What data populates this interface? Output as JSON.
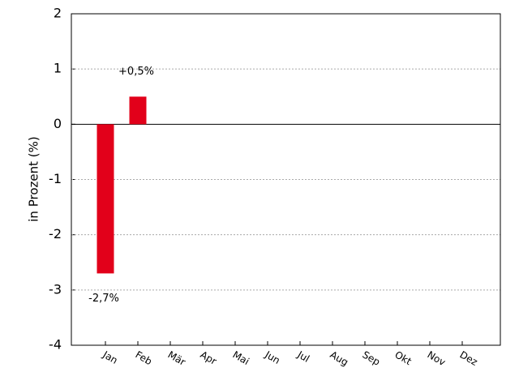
{
  "chart_data": {
    "type": "bar",
    "y_label": "in Prozent (%)",
    "categories": [
      "Jan",
      "Feb",
      "Mär",
      "Apr",
      "Mai",
      "Jun",
      "Jul",
      "Aug",
      "Sep",
      "Okt",
      "Nov",
      "Dez"
    ],
    "values": [
      -2.7,
      0.5,
      null,
      null,
      null,
      null,
      null,
      null,
      null,
      null,
      null,
      null
    ],
    "value_labels": [
      "-2,7%",
      "+0,5%",
      null,
      null,
      null,
      null,
      null,
      null,
      null,
      null,
      null,
      null
    ],
    "color": "#e2001a",
    "ylim": [
      -4,
      2
    ],
    "yticks": [
      -4,
      -3,
      -2,
      -1,
      0,
      1,
      2
    ],
    "grid": true
  }
}
